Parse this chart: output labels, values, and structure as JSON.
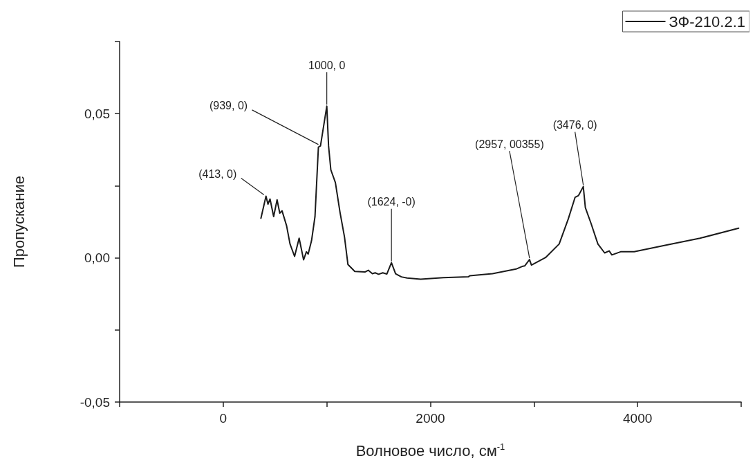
{
  "chart_data": {
    "type": "line",
    "xlabel": "Волновое число, см$^{-1}$",
    "ylabel": "Пропускание",
    "xlim": [
      -1000,
      5000
    ],
    "xticks": [
      {
        "value": -1000,
        "label": null
      },
      0,
      {
        "value": 1000,
        "label": null
      },
      2000,
      {
        "value": 3000,
        "label": null
      },
      4000,
      {
        "value": 5000,
        "label": null
      }
    ],
    "ylim": [
      -0.05,
      0.075
    ],
    "yticks": [
      {
        "value": -0.05,
        "label": "-0,05"
      },
      {
        "value": -0.025,
        "label": null
      },
      {
        "value": 0,
        "label": "0,00"
      },
      {
        "value": 0.025,
        "label": null
      },
      {
        "value": 0.05,
        "label": "0,05"
      },
      {
        "value": 0.075,
        "label": null
      }
    ],
    "grid": false,
    "legend": "top right",
    "marker": "none",
    "line_style": "solid",
    "series": [
      {
        "name": "ЗФ-210.2.1",
        "color": "#1a1a1a",
        "x": [
          364,
          413,
          432,
          452,
          487,
          520,
          546,
          568,
          612,
          645,
          689,
          733,
          776,
          803,
          820,
          853,
          886,
          919,
          939,
          1000,
          1017,
          1039,
          1083,
          1127,
          1171,
          1204,
          1270,
          1368,
          1400,
          1440,
          1467,
          1500,
          1540,
          1580,
          1624,
          1664,
          1720,
          1775,
          1906,
          2125,
          2366,
          2380,
          2600,
          2827,
          2893,
          2910,
          2957,
          2975,
          3112,
          3243,
          3331,
          3397,
          3430,
          3476,
          3496,
          3551,
          3617,
          3682,
          3726,
          3752,
          3836,
          3967,
          4274,
          4603,
          4976
        ],
        "values": [
          0.0137,
          0.0214,
          0.0186,
          0.0204,
          0.0143,
          0.0201,
          0.0155,
          0.0163,
          0.0111,
          0.0048,
          0.0005,
          0.0068,
          -0.0007,
          0.0021,
          0.0013,
          0.006,
          0.0143,
          0.0384,
          0.0388,
          0.0526,
          0.0388,
          0.0305,
          0.0261,
          0.0159,
          0.0072,
          -0.0023,
          -0.0047,
          -0.0049,
          -0.0043,
          -0.0055,
          -0.0052,
          -0.0057,
          -0.0052,
          -0.0056,
          -0.0017,
          -0.0055,
          -0.0066,
          -0.007,
          -0.0074,
          -0.0069,
          -0.0066,
          -0.0062,
          -0.0055,
          -0.0039,
          -0.0029,
          -0.0028,
          -0.0006,
          -0.0025,
          0.0001,
          0.0048,
          0.0135,
          0.021,
          0.0216,
          0.0247,
          0.0174,
          0.0119,
          0.0048,
          0.0017,
          0.0024,
          0.001,
          0.0021,
          0.0021,
          0.0044,
          0.0068,
          0.0103
        ]
      }
    ],
    "annotations": [
      {
        "text": "(413, 0)",
        "x": 413,
        "y": 0.0214
      },
      {
        "text": "(939, 0)",
        "x": 939,
        "y": 0.0388
      },
      {
        "text": "1000, 0",
        "x": 1000,
        "y": 0.0526
      },
      {
        "text": "(1624, -0)",
        "x": 1624,
        "y": -0.0017
      },
      {
        "text": "(2957, 00355)",
        "x": 2957,
        "y": -0.0006
      },
      {
        "text": "(3476, 0)",
        "x": 3476,
        "y": 0.0247
      }
    ]
  }
}
